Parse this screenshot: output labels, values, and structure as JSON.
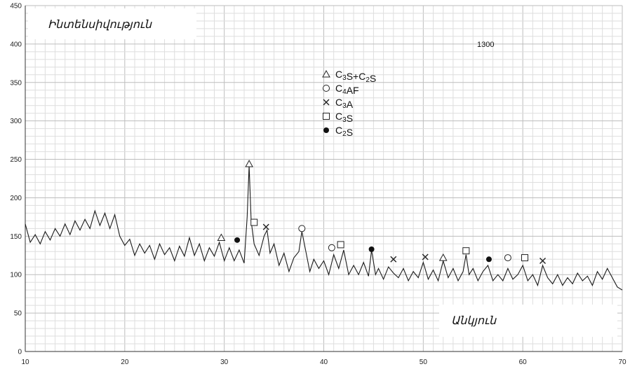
{
  "chart_data": {
    "type": "line",
    "title": "1300",
    "ylabel": "Ինտենսիվություն",
    "xlabel": "Անկյուն",
    "xlim": [
      10,
      70
    ],
    "ylim": [
      0,
      450
    ],
    "x_ticks": [
      10,
      20,
      30,
      40,
      50,
      60,
      70
    ],
    "y_ticks": [
      0,
      50,
      100,
      150,
      200,
      250,
      300,
      350,
      400,
      450
    ],
    "grid": true,
    "legend_position": "top-center",
    "legend": [
      {
        "marker": "triangle",
        "text": "C3S+C2S"
      },
      {
        "marker": "circle",
        "text": "C4AF"
      },
      {
        "marker": "cross",
        "text": "C3A"
      },
      {
        "marker": "square",
        "text": "C3S"
      },
      {
        "marker": "dot",
        "text": "C2S"
      }
    ],
    "series": [
      {
        "points": [
          [
            10.0,
            166
          ],
          [
            10.5,
            142
          ],
          [
            11.0,
            152
          ],
          [
            11.5,
            140
          ],
          [
            12.0,
            156
          ],
          [
            12.5,
            145
          ],
          [
            13.0,
            160
          ],
          [
            13.5,
            150
          ],
          [
            14.0,
            166
          ],
          [
            14.5,
            152
          ],
          [
            15.0,
            170
          ],
          [
            15.5,
            158
          ],
          [
            16.0,
            172
          ],
          [
            16.5,
            160
          ],
          [
            17.0,
            183
          ],
          [
            17.5,
            164
          ],
          [
            18.0,
            180
          ],
          [
            18.5,
            160
          ],
          [
            19.0,
            178
          ],
          [
            19.5,
            150
          ],
          [
            20.0,
            138
          ],
          [
            20.5,
            146
          ],
          [
            21.0,
            125
          ],
          [
            21.5,
            140
          ],
          [
            22.0,
            128
          ],
          [
            22.5,
            138
          ],
          [
            23.0,
            120
          ],
          [
            23.5,
            140
          ],
          [
            24.0,
            126
          ],
          [
            24.5,
            135
          ],
          [
            25.0,
            118
          ],
          [
            25.5,
            137
          ],
          [
            26.0,
            124
          ],
          [
            26.5,
            148
          ],
          [
            27.0,
            125
          ],
          [
            27.5,
            140
          ],
          [
            28.0,
            118
          ],
          [
            28.5,
            135
          ],
          [
            29.0,
            124
          ],
          [
            29.5,
            142
          ],
          [
            30.0,
            118
          ],
          [
            30.5,
            135
          ],
          [
            31.0,
            118
          ],
          [
            31.5,
            132
          ],
          [
            32.0,
            115
          ],
          [
            32.3,
            175
          ],
          [
            32.5,
            242
          ],
          [
            32.7,
            170
          ],
          [
            33.0,
            140
          ],
          [
            33.5,
            125
          ],
          [
            34.0,
            150
          ],
          [
            34.3,
            158
          ],
          [
            34.6,
            128
          ],
          [
            35.0,
            140
          ],
          [
            35.5,
            112
          ],
          [
            36.0,
            128
          ],
          [
            36.5,
            104
          ],
          [
            37.0,
            122
          ],
          [
            37.5,
            130
          ],
          [
            37.8,
            156
          ],
          [
            38.2,
            130
          ],
          [
            38.6,
            104
          ],
          [
            39.0,
            120
          ],
          [
            39.5,
            108
          ],
          [
            40.0,
            118
          ],
          [
            40.5,
            100
          ],
          [
            41.0,
            126
          ],
          [
            41.5,
            108
          ],
          [
            42.0,
            132
          ],
          [
            42.5,
            100
          ],
          [
            43.0,
            112
          ],
          [
            43.5,
            100
          ],
          [
            44.0,
            116
          ],
          [
            44.5,
            98
          ],
          [
            44.8,
            132
          ],
          [
            45.2,
            100
          ],
          [
            45.5,
            108
          ],
          [
            46.0,
            94
          ],
          [
            46.5,
            110
          ],
          [
            47.0,
            102
          ],
          [
            47.5,
            96
          ],
          [
            48.0,
            108
          ],
          [
            48.5,
            92
          ],
          [
            49.0,
            104
          ],
          [
            49.5,
            96
          ],
          [
            50.0,
            116
          ],
          [
            50.5,
            94
          ],
          [
            51.0,
            106
          ],
          [
            51.5,
            92
          ],
          [
            52.0,
            118
          ],
          [
            52.5,
            96
          ],
          [
            53.0,
            108
          ],
          [
            53.5,
            92
          ],
          [
            54.0,
            104
          ],
          [
            54.3,
            126
          ],
          [
            54.6,
            100
          ],
          [
            55.0,
            108
          ],
          [
            55.5,
            92
          ],
          [
            56.0,
            104
          ],
          [
            56.5,
            112
          ],
          [
            57.0,
            92
          ],
          [
            57.5,
            100
          ],
          [
            58.0,
            92
          ],
          [
            58.5,
            108
          ],
          [
            59.0,
            94
          ],
          [
            59.5,
            100
          ],
          [
            60.0,
            112
          ],
          [
            60.5,
            92
          ],
          [
            61.0,
            100
          ],
          [
            61.5,
            86
          ],
          [
            62.0,
            112
          ],
          [
            62.5,
            96
          ],
          [
            63.0,
            88
          ],
          [
            63.5,
            100
          ],
          [
            64.0,
            86
          ],
          [
            64.5,
            96
          ],
          [
            65.0,
            88
          ],
          [
            65.5,
            102
          ],
          [
            66.0,
            92
          ],
          [
            66.5,
            98
          ],
          [
            67.0,
            86
          ],
          [
            67.5,
            104
          ],
          [
            68.0,
            94
          ],
          [
            68.5,
            108
          ],
          [
            69.0,
            96
          ],
          [
            69.5,
            84
          ],
          [
            70.0,
            80
          ]
        ]
      }
    ],
    "markers": [
      {
        "type": "triangle",
        "x": 29.7,
        "y": 148
      },
      {
        "type": "triangle",
        "x": 32.5,
        "y": 244
      },
      {
        "type": "triangle",
        "x": 52.0,
        "y": 122
      },
      {
        "type": "dot",
        "x": 31.3,
        "y": 145
      },
      {
        "type": "dot",
        "x": 44.8,
        "y": 133
      },
      {
        "type": "dot",
        "x": 56.6,
        "y": 120
      },
      {
        "type": "square",
        "x": 33.0,
        "y": 168
      },
      {
        "type": "square",
        "x": 41.7,
        "y": 139
      },
      {
        "type": "square",
        "x": 54.3,
        "y": 131
      },
      {
        "type": "square",
        "x": 60.2,
        "y": 122
      },
      {
        "type": "cross",
        "x": 34.2,
        "y": 162
      },
      {
        "type": "cross",
        "x": 47.0,
        "y": 120
      },
      {
        "type": "cross",
        "x": 50.2,
        "y": 123
      },
      {
        "type": "cross",
        "x": 62.0,
        "y": 118
      },
      {
        "type": "circle",
        "x": 37.8,
        "y": 160
      },
      {
        "type": "circle",
        "x": 40.8,
        "y": 135
      },
      {
        "type": "circle",
        "x": 58.5,
        "y": 122
      }
    ]
  }
}
